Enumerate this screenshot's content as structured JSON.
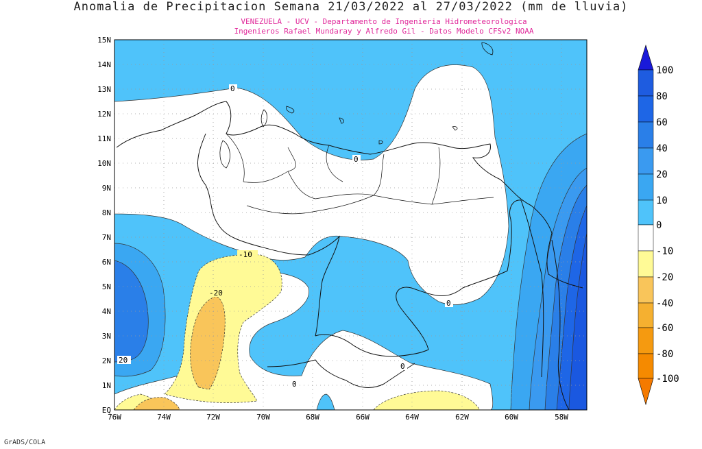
{
  "title": "Anomalia de Precipitacion Semana 21/03/2022 al 27/03/2022 (mm de lluvia)",
  "subtitle_line1": "VENEZUELA - UCV - Departamento de Ingenieria Hidrometeorologica",
  "subtitle_line2": "Ingenieros Rafael Mundaray y Alfredo Gil - Datos Modelo CFSv2 NOAA",
  "credit": "GrADS/COLA",
  "map": {
    "lon_range": [
      -76,
      -57
    ],
    "lat_range": [
      0,
      15
    ],
    "lat_labels": [
      "15N",
      "14N",
      "13N",
      "12N",
      "11N",
      "10N",
      "9N",
      "8N",
      "7N",
      "6N",
      "5N",
      "4N",
      "3N",
      "2N",
      "1N",
      "EQ"
    ],
    "lon_labels": [
      "76W",
      "74W",
      "72W",
      "70W",
      "68W",
      "66W",
      "64W",
      "62W",
      "60W",
      "58W"
    ],
    "contour_labels": [
      "0",
      "0",
      "0",
      "0",
      "0",
      "-10",
      "-20",
      "20"
    ]
  },
  "legend": {
    "labels": [
      "100",
      "80",
      "60",
      "40",
      "20",
      "10",
      "0",
      "-10",
      "-20",
      "-40",
      "-60",
      "-80",
      "-100"
    ],
    "colors": {
      "100": "#1a3fd9",
      "80": "#1e66e6",
      "60": "#2a7fe8",
      "40": "#3a9af0",
      "20": "#3aa7f2",
      "10": "#4fc3fa",
      "0": "#ffffff",
      "-10": "#fffa96",
      "-20": "#f9c55a",
      "-40": "#f5b030",
      "-60": "#f59a10",
      "-80": "#f58a00",
      "-100": "#f57a00"
    }
  }
}
